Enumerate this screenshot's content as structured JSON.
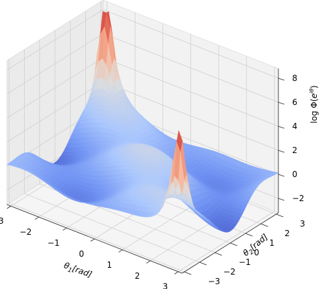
{
  "chart_data": {
    "type": "surface",
    "title": "",
    "colormap": "coolwarm",
    "colormap_stops": [
      "#3b4cc0",
      "#6f92f3",
      "#aac7fd",
      "#dddddd",
      "#f7b89c",
      "#e7745b",
      "#b40426"
    ],
    "xlabel": "θ1[rad]",
    "ylabel": "θ2[rad]",
    "zlabel": "log Φ(eiθ)",
    "x_ticks": [
      "−3",
      "−2",
      "−1",
      "0",
      "1",
      "2",
      "3"
    ],
    "y_ticks": [
      "−3",
      "−2",
      "−1",
      "0",
      "1",
      "2",
      "3"
    ],
    "z_ticks": [
      "−2",
      "0",
      "2",
      "4",
      "6",
      "8"
    ],
    "xlim": [
      -3.14,
      3.14
    ],
    "ylim": [
      -3.14,
      3.14
    ],
    "zlim": [
      -3.2,
      8.8
    ],
    "grid": true,
    "surface_description": "Surface with broad ridges near 0–3 and valleys near −2, and two sharp spikes up to about 8 near (θ1,θ2) = (−3,3) and (3,−3)."
  }
}
